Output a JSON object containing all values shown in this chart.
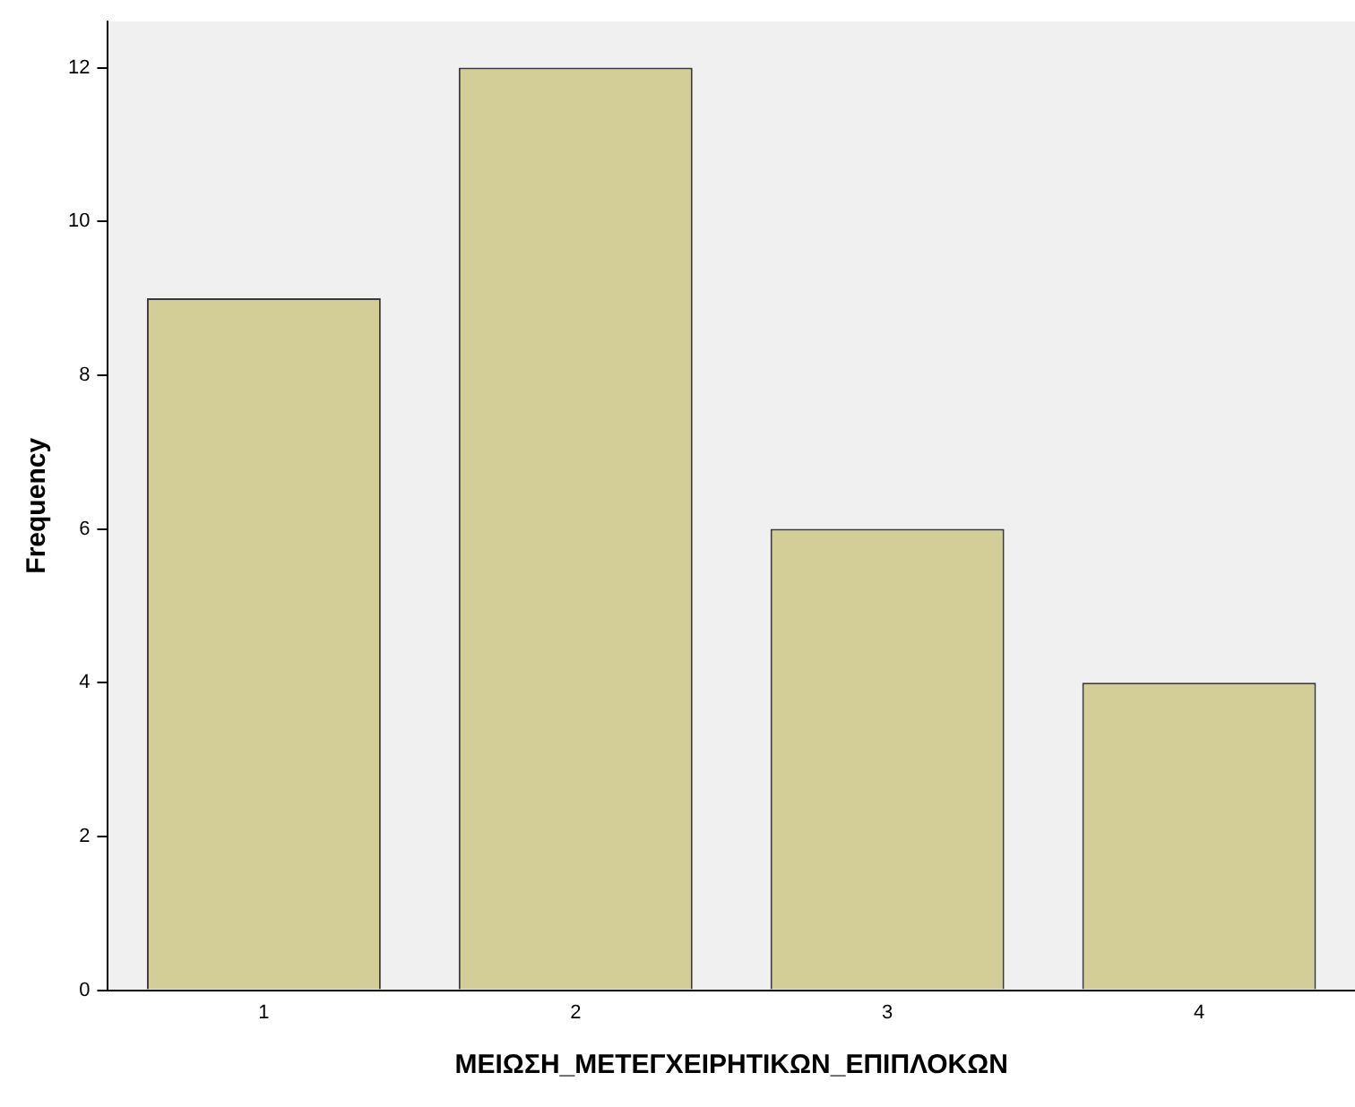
{
  "chart_data": {
    "type": "bar",
    "xlabel": "ΜΕΙΩΣΗ_ΜΕΤΕΓΧΕΙΡΗΤΙΚΩΝ_ΕΠΙΠΛΟΚΩΝ",
    "ylabel": "Frequency",
    "categories": [
      "1",
      "2",
      "3",
      "4"
    ],
    "values": [
      9,
      12,
      6,
      4
    ],
    "color": "#d3ce97",
    "ylim": [
      0,
      12.6
    ],
    "yticks": [
      0,
      2,
      4,
      6,
      8,
      10,
      12
    ],
    "grid": false,
    "legend": false
  }
}
